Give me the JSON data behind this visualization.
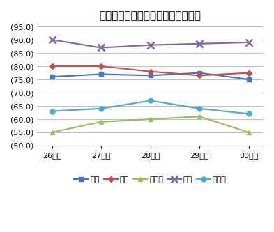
{
  "title": "総収益に占める料金収入比率の推移",
  "x_labels": [
    "26年度",
    "27年度",
    "28年度",
    "29年度",
    "30年度"
  ],
  "series": [
    {
      "name": "水道",
      "values": [
        76.0,
        77.0,
        76.5,
        77.5,
        75.0
      ],
      "color": "#4472C4",
      "marker": "s"
    },
    {
      "name": "病院",
      "values": [
        80.0,
        80.0,
        78.0,
        76.5,
        77.5
      ],
      "color": "#C0504D",
      "marker": "D"
    },
    {
      "name": "下水道",
      "values": [
        55.0,
        59.0,
        60.0,
        61.0,
        55.0
      ],
      "color": "#9BBB59",
      "marker": "^"
    },
    {
      "name": "ガス",
      "values": [
        90.0,
        87.0,
        88.0,
        88.5,
        89.0
      ],
      "color": "#8064A2",
      "marker": "x"
    },
    {
      "name": "その他",
      "values": [
        63.0,
        64.0,
        67.0,
        64.0,
        62.0
      ],
      "color": "#4BACC6",
      "marker": "o"
    }
  ],
  "ylim": [
    50.0,
    95.0
  ],
  "yticks": [
    50.0,
    55.0,
    60.0,
    65.0,
    70.0,
    75.0,
    80.0,
    85.0,
    90.0,
    95.0
  ],
  "ytick_labels": [
    "(50.0)",
    "(55.0)",
    "(60.0)",
    "(65.0)",
    "(70.0)",
    "(75.0)",
    "(80.0)",
    "(85.0)",
    "(90.0)",
    "(95.0)"
  ],
  "background_color": "#FFFFFF",
  "grid_color": "#C0C0C0"
}
